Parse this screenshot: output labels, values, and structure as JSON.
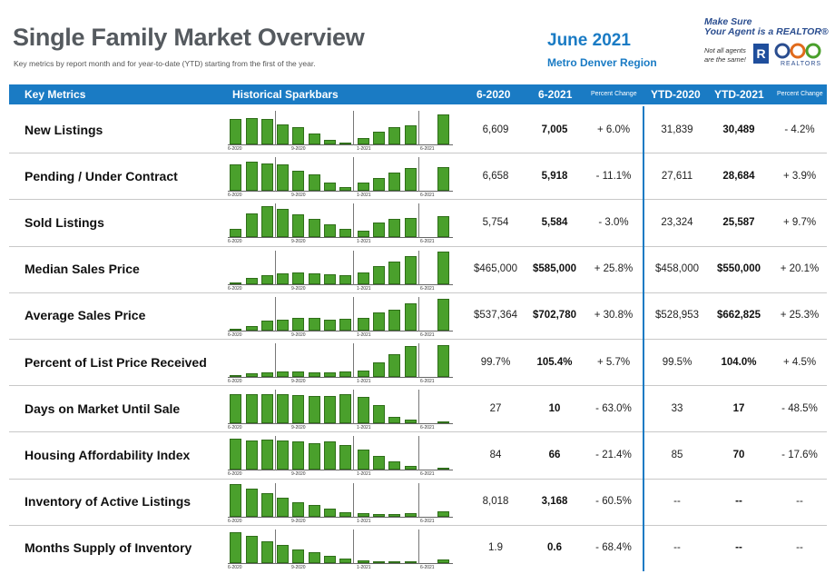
{
  "header": {
    "title": "Single Family Market Overview",
    "subtitle": "Key metrics by report month and for year-to-date (YTD) starting from the first of the year.",
    "date": "June 2021",
    "region": "Metro Denver Region"
  },
  "logo": {
    "tagline_line1": "Make Sure",
    "tagline_line2": "Your Agent is a REALTOR®",
    "note_line1": "Not all agents",
    "note_line2": "are the same!",
    "r_mark": "R",
    "realtors_text": "REALTORS"
  },
  "table": {
    "columns": {
      "metric": "Key Metrics",
      "spark": "Historical Sparkbars",
      "m_prev": "6-2020",
      "m_cur": "6-2021",
      "m_pct": "Percent Change",
      "y_prev": "YTD-2020",
      "y_cur": "YTD-2021",
      "y_pct": "Percent Change"
    },
    "spark_axis_labels": [
      "6-2020",
      "9-2020",
      "1-2021",
      "6-2021"
    ],
    "rows": [
      {
        "label": "New Listings",
        "m_prev": "6,609",
        "m_cur": "7,005",
        "m_pct": "+ 6.0%",
        "y_prev": "31,839",
        "y_cur": "30,489",
        "y_pct": "- 4.2%",
        "spark": [
          0.78,
          0.8,
          0.78,
          0.62,
          0.52,
          0.32,
          0.14,
          0.04,
          0.2,
          0.38,
          0.53,
          0.58,
          0.92
        ]
      },
      {
        "label": "Pending / Under Contract",
        "m_prev": "6,658",
        "m_cur": "5,918",
        "m_pct": "- 11.1%",
        "y_prev": "27,611",
        "y_cur": "28,684",
        "y_pct": "+ 3.9%",
        "spark": [
          0.8,
          0.88,
          0.84,
          0.8,
          0.6,
          0.5,
          0.25,
          0.1,
          0.25,
          0.4,
          0.55,
          0.7,
          0.72
        ]
      },
      {
        "label": "Sold Listings",
        "m_prev": "5,754",
        "m_cur": "5,584",
        "m_pct": "- 3.0%",
        "y_prev": "23,324",
        "y_cur": "25,587",
        "y_pct": "+ 9.7%",
        "spark": [
          0.25,
          0.72,
          0.95,
          0.85,
          0.7,
          0.55,
          0.4,
          0.25,
          0.2,
          0.45,
          0.55,
          0.58,
          0.65
        ]
      },
      {
        "label": "Median Sales Price",
        "m_prev": "$465,000",
        "m_cur": "$585,000",
        "m_pct": "+ 25.8%",
        "y_prev": "$458,000",
        "y_cur": "$550,000",
        "y_pct": "+ 20.1%",
        "spark": [
          0.03,
          0.2,
          0.28,
          0.33,
          0.35,
          0.33,
          0.3,
          0.28,
          0.35,
          0.55,
          0.7,
          0.85,
          1.0
        ]
      },
      {
        "label": "Average Sales Price",
        "m_prev": "$537,364",
        "m_cur": "$702,780",
        "m_pct": "+ 30.8%",
        "y_prev": "$528,953",
        "y_cur": "$662,825",
        "y_pct": "+ 25.3%",
        "spark": [
          0.03,
          0.15,
          0.3,
          0.33,
          0.4,
          0.38,
          0.33,
          0.35,
          0.4,
          0.55,
          0.65,
          0.82,
          0.98
        ]
      },
      {
        "label": "Percent of List Price Received",
        "m_prev": "99.7%",
        "m_cur": "105.4%",
        "m_pct": "+ 5.7%",
        "y_prev": "99.5%",
        "y_cur": "104.0%",
        "y_pct": "+ 4.5%",
        "spark": [
          0.04,
          0.1,
          0.14,
          0.16,
          0.16,
          0.14,
          0.14,
          0.16,
          0.2,
          0.45,
          0.7,
          0.95,
          0.98
        ]
      },
      {
        "label": "Days on Market Until Sale",
        "m_prev": "27",
        "m_cur": "10",
        "m_pct": "- 63.0%",
        "y_prev": "33",
        "y_cur": "17",
        "y_pct": "- 48.5%",
        "spark": [
          0.9,
          0.88,
          0.9,
          0.88,
          0.85,
          0.82,
          0.82,
          0.9,
          0.8,
          0.55,
          0.2,
          0.1,
          0.04
        ]
      },
      {
        "label": "Housing Affordability Index",
        "m_prev": "84",
        "m_cur": "66",
        "m_pct": "- 21.4%",
        "y_prev": "85",
        "y_cur": "70",
        "y_pct": "- 17.6%",
        "spark": [
          0.95,
          0.9,
          0.92,
          0.88,
          0.85,
          0.8,
          0.85,
          0.75,
          0.6,
          0.42,
          0.25,
          0.1,
          0.04
        ]
      },
      {
        "label": "Inventory of Active Listings",
        "m_prev": "8,018",
        "m_cur": "3,168",
        "m_pct": "- 60.5%",
        "y_prev": "--",
        "y_cur": "--",
        "y_pct": "--",
        "spark": [
          1.0,
          0.85,
          0.72,
          0.58,
          0.45,
          0.35,
          0.25,
          0.15,
          0.1,
          0.08,
          0.08,
          0.1,
          0.16
        ]
      },
      {
        "label": "Months Supply of Inventory",
        "m_prev": "1.9",
        "m_cur": "0.6",
        "m_pct": "- 68.4%",
        "y_prev": "--",
        "y_cur": "--",
        "y_pct": "--",
        "spark": [
          0.95,
          0.82,
          0.68,
          0.55,
          0.42,
          0.32,
          0.22,
          0.14,
          0.08,
          0.06,
          0.06,
          0.06,
          0.1
        ]
      }
    ]
  },
  "colors": {
    "accent": "#1a7bc4",
    "bar": "#4aa02c",
    "title": "#555a5f"
  }
}
